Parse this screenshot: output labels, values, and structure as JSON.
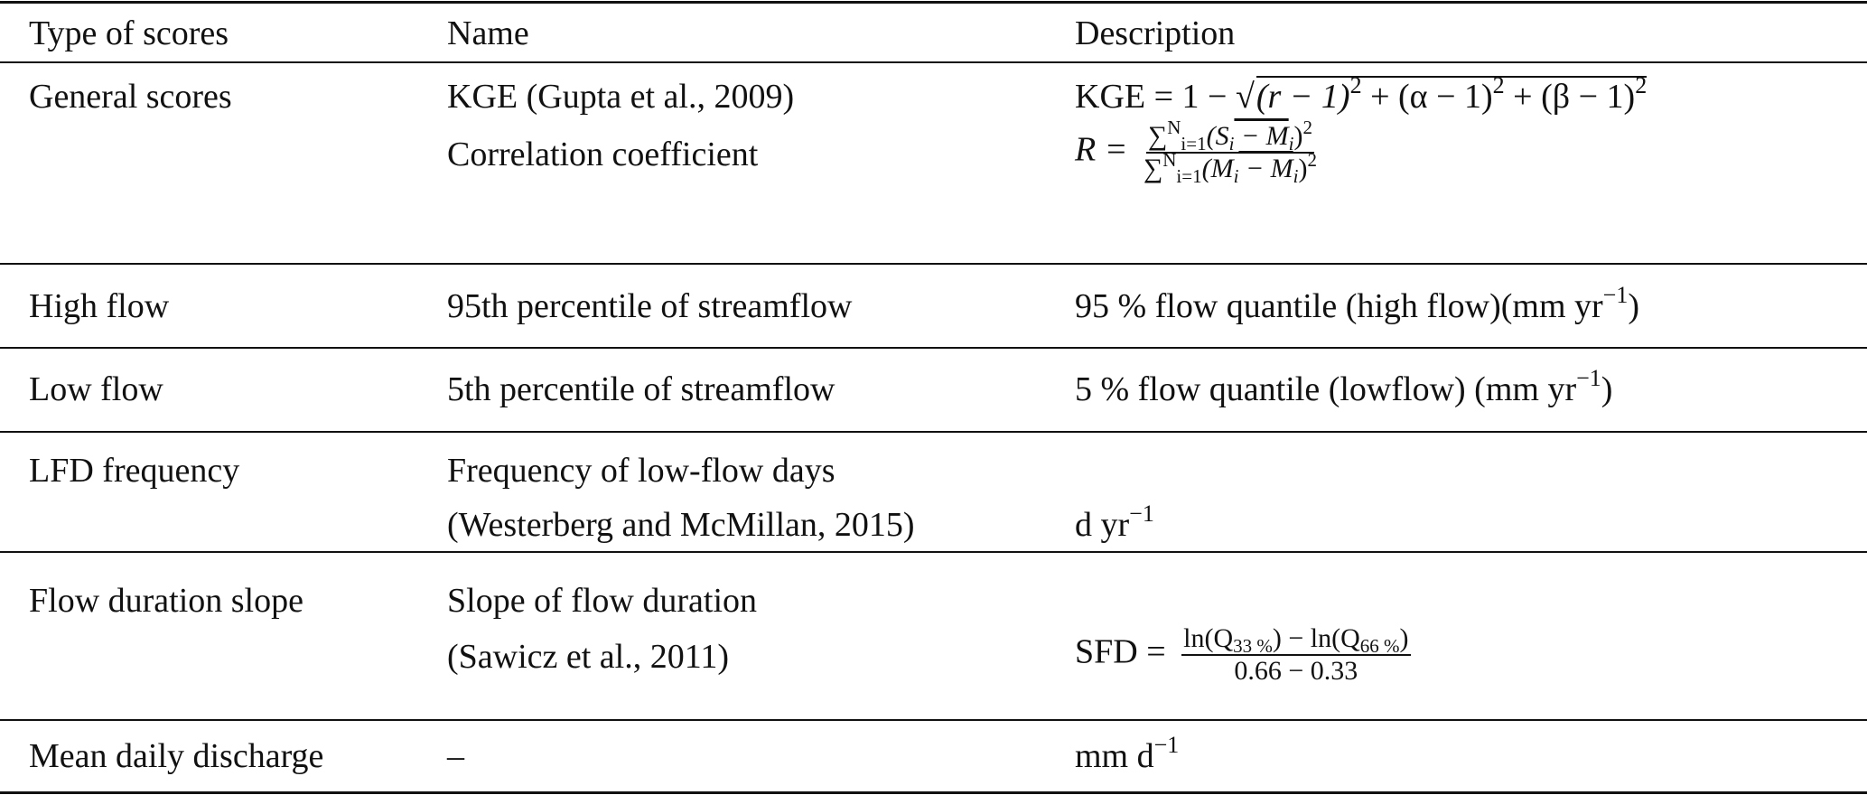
{
  "table": {
    "headers": [
      "Type of scores",
      "Name",
      "Description"
    ],
    "rows": [
      {
        "type": "General scores",
        "names": [
          "KGE (Gupta et al., 2009)",
          "Correlation coefficient"
        ],
        "kge": {
          "lhs": "KGE = 1 −",
          "sqrt_radical": "√",
          "t1": "(r − 1)",
          "t2": "+ (α − 1)",
          "t3": "+ (β − 1)",
          "exp": "2"
        },
        "corr": {
          "lhs": "R =",
          "num": "∑",
          "num_sup": "N",
          "num_sub": "i=1",
          "num_body": "(S",
          "num_i": "i",
          "num_mid": " − M",
          "num_end": ")",
          "den": "∑",
          "den_body": "(M",
          "den_mid": " − M",
          "exp": "2"
        }
      },
      {
        "type": "High flow",
        "name": "95th percentile of streamflow",
        "desc": "95 % flow quantile (high flow)(mm yr",
        "desc_exp": "−1",
        "desc_end": ")"
      },
      {
        "type": "Low flow",
        "name": "5th percentile of streamflow",
        "desc": "5 % flow quantile (lowflow) (mm yr",
        "desc_exp": "−1",
        "desc_end": ")"
      },
      {
        "type": "LFD frequency",
        "names": [
          "Frequency of low-flow days",
          "(Westerberg and McMillan, 2015)"
        ],
        "desc": "d yr",
        "desc_exp": "−1"
      },
      {
        "type": "Flow duration slope",
        "names": [
          "Slope of flow duration",
          "(Sawicz et al., 2011)"
        ],
        "sfd": {
          "lhs": "SFD =",
          "num_a": "ln(Q",
          "sub_a": "33 %",
          "num_b": ") − ln(Q",
          "sub_b": "66 %",
          "num_c": ")",
          "den": "0.66 − 0.33"
        }
      },
      {
        "type": "Mean daily discharge",
        "name": "–",
        "desc": "mm d",
        "desc_exp": "−1"
      }
    ]
  }
}
